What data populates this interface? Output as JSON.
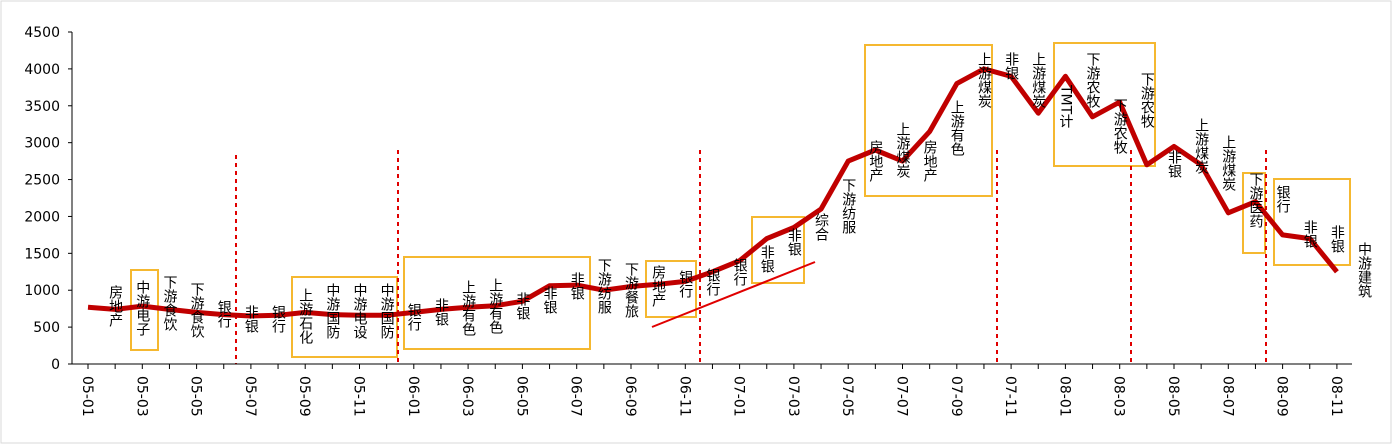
{
  "chart_data": {
    "type": "line",
    "categories": [
      "05-01",
      null,
      "05-03",
      null,
      "05-05",
      null,
      "05-07",
      null,
      "05-09",
      null,
      "05-11",
      null,
      "06-01",
      null,
      "06-03",
      null,
      "06-05",
      null,
      "06-07",
      null,
      "06-09",
      null,
      "06-11",
      null,
      "07-01",
      null,
      "07-03",
      null,
      "07-05",
      null,
      "07-07",
      null,
      "07-09",
      null,
      "07-11",
      null,
      "08-01",
      null,
      "08-03",
      null,
      "08-05",
      null,
      "08-07",
      null,
      "08-09",
      null,
      "08-11"
    ],
    "series": [
      {
        "color": "#c00000",
        "values": [
          770,
          740,
          785,
          740,
          700,
          670,
          650,
          660,
          700,
          670,
          660,
          660,
          700,
          740,
          770,
          790,
          850,
          1060,
          1070,
          1000,
          1050,
          1080,
          1120,
          1250,
          1400,
          1700,
          1850,
          2100,
          2750,
          2900,
          2750,
          3150,
          3800,
          4000,
          3900,
          3400,
          3900,
          3350,
          3550,
          2700,
          2950,
          2700,
          2050,
          2200,
          1750,
          1700,
          1250
        ]
      }
    ],
    "ylim": [
      0,
      4500
    ],
    "yticks": [
      0,
      500,
      1000,
      1500,
      2000,
      2500,
      3000,
      3500,
      4000,
      4500
    ],
    "annotations": [
      "房地产",
      "中游电子",
      "下游食饮",
      "下游食饮",
      "银行",
      "非银",
      "银行",
      "上游石化",
      "中游国防",
      "中游电设",
      "中游国防",
      "银行",
      "非银",
      "上游有色",
      "上游有色",
      "非银",
      "非银",
      "非银",
      "下游纺服",
      "下游餐旅",
      "房地产",
      "银行",
      "银行",
      "银行",
      "非银",
      "非银",
      "综合",
      "下游纺服",
      "房地产",
      "上游煤炭",
      "房地产",
      "上游有色",
      "上游煤炭",
      "非银",
      "上游煤炭",
      "TMT计",
      "下游农牧",
      "下游农牧",
      "下游农牧",
      "非银",
      "上游煤炭",
      "上游煤炭",
      "下游医药",
      "银行",
      "非银",
      "非银",
      "中游建筑"
    ]
  }
}
